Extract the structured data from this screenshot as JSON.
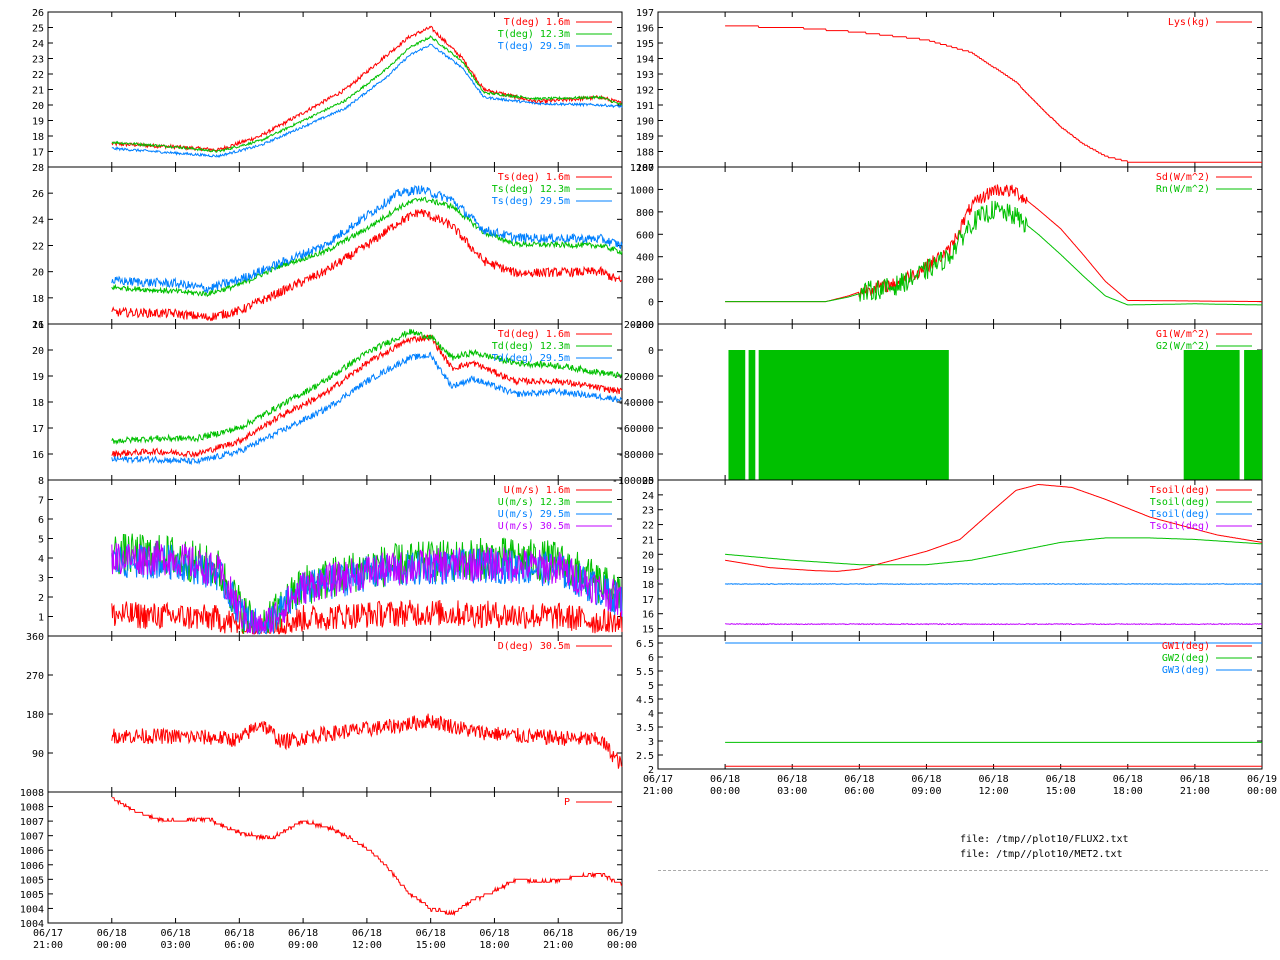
{
  "colors": {
    "red": "#ff0000",
    "green": "#00c000",
    "blue": "#0080ff",
    "purple": "#c000ff",
    "axis": "#000000",
    "background": "#ffffff"
  },
  "x_axis": {
    "range": [
      "06/17 21:00",
      "06/19 00:00"
    ],
    "ticks": [
      {
        "date": "06/17",
        "time": "21:00",
        "h": 0
      },
      {
        "date": "06/18",
        "time": "00:00",
        "h": 3
      },
      {
        "date": "06/18",
        "time": "03:00",
        "h": 6
      },
      {
        "date": "06/18",
        "time": "06:00",
        "h": 9
      },
      {
        "date": "06/18",
        "time": "09:00",
        "h": 12
      },
      {
        "date": "06/18",
        "time": "12:00",
        "h": 15
      },
      {
        "date": "06/18",
        "time": "15:00",
        "h": 18
      },
      {
        "date": "06/18",
        "time": "18:00",
        "h": 21
      },
      {
        "date": "06/18",
        "time": "21:00",
        "h": 24
      },
      {
        "date": "06/19",
        "time": "00:00",
        "h": 27
      }
    ]
  },
  "footer": {
    "file1": "file: /tmp//plot10/FLUX2.txt",
    "file2": "file: /tmp//plot10/MET2.txt"
  },
  "chart_data": [
    {
      "type": "line",
      "id": "temperature",
      "ylim": [
        16,
        26
      ],
      "yticks": [
        17,
        18,
        19,
        20,
        21,
        22,
        23,
        24,
        25,
        26
      ],
      "series": [
        {
          "name": "T(deg)  1.6m",
          "color": "#ff0000",
          "noise": 0.12,
          "x": [
            3.0,
            6.0,
            8.0,
            10.0,
            12.0,
            14.0,
            16.0,
            17.0,
            18.0,
            19.5,
            20.5,
            23.0,
            26.0,
            27.0
          ],
          "y": [
            17.5,
            17.3,
            17.1,
            18.0,
            19.5,
            21.0,
            23.3,
            24.4,
            25.0,
            23.0,
            21.0,
            20.2,
            20.5,
            20.1
          ]
        },
        {
          "name": "T(deg) 12.3m",
          "color": "#00c000",
          "noise": 0.08,
          "x": [
            3.0,
            6.0,
            8.0,
            10.0,
            12.0,
            14.0,
            16.0,
            17.0,
            18.0,
            19.5,
            20.5,
            23.0,
            26.0,
            27.0
          ],
          "y": [
            17.6,
            17.3,
            17.0,
            17.7,
            19.0,
            20.3,
            22.4,
            23.7,
            24.4,
            22.8,
            20.8,
            20.4,
            20.5,
            20.0
          ]
        },
        {
          "name": "T(deg) 29.5m",
          "color": "#0080ff",
          "noise": 0.08,
          "x": [
            3.0,
            6.0,
            8.0,
            10.0,
            12.0,
            14.0,
            16.0,
            17.0,
            18.0,
            19.5,
            20.5,
            23.0,
            26.0,
            27.0
          ],
          "y": [
            17.2,
            16.9,
            16.7,
            17.4,
            18.6,
            19.8,
            21.9,
            23.2,
            23.9,
            22.4,
            20.5,
            20.1,
            20.0,
            19.9
          ]
        }
      ]
    },
    {
      "type": "line",
      "id": "sonic-temperature",
      "ylim": [
        16,
        28
      ],
      "yticks": [
        16,
        18,
        20,
        22,
        24,
        26,
        28
      ],
      "series": [
        {
          "name": "Ts(deg)  1.6m",
          "color": "#ff0000",
          "noise": 0.35,
          "x": [
            3.0,
            6.0,
            7.5,
            9.0,
            11.0,
            13.0,
            15.0,
            16.5,
            17.5,
            19.0,
            20.5,
            22.0,
            26.0,
            27.0
          ],
          "y": [
            16.9,
            16.8,
            16.5,
            17.0,
            18.5,
            20.0,
            22.0,
            23.8,
            24.6,
            23.5,
            20.8,
            19.9,
            20.0,
            19.2
          ]
        },
        {
          "name": "Ts(deg) 12.3m",
          "color": "#00c000",
          "noise": 0.2,
          "x": [
            3.0,
            6.0,
            7.5,
            9.0,
            11.0,
            13.0,
            15.0,
            16.5,
            17.5,
            19.0,
            20.5,
            22.0,
            26.0,
            27.0
          ],
          "y": [
            18.8,
            18.5,
            18.3,
            19.0,
            20.5,
            21.5,
            23.3,
            24.9,
            25.6,
            25.0,
            23.0,
            22.1,
            22.0,
            21.5
          ]
        },
        {
          "name": "Ts(deg) 29.5m",
          "color": "#0080ff",
          "noise": 0.35,
          "x": [
            3.0,
            6.0,
            7.5,
            9.0,
            11.0,
            13.0,
            15.0,
            16.5,
            17.5,
            19.0,
            20.5,
            22.0,
            26.0,
            27.0
          ],
          "y": [
            19.3,
            19.1,
            18.7,
            19.4,
            20.7,
            22.0,
            24.3,
            26.0,
            26.3,
            25.5,
            23.2,
            22.6,
            22.5,
            22.0
          ]
        }
      ]
    },
    {
      "type": "line",
      "id": "dewpoint",
      "ylim": [
        15,
        21
      ],
      "yticks": [
        16,
        17,
        18,
        19,
        20,
        21
      ],
      "series": [
        {
          "name": "Td(deg)  1.6m",
          "color": "#ff0000",
          "noise": 0.12,
          "x": [
            3.0,
            5.0,
            7.0,
            9.0,
            11.0,
            13.0,
            15.0,
            17.0,
            18.0,
            19.0,
            20.0,
            22.0,
            24.0,
            27.0
          ],
          "y": [
            16.0,
            16.1,
            16.0,
            16.5,
            17.5,
            18.3,
            19.5,
            20.4,
            20.5,
            19.3,
            19.5,
            18.8,
            18.8,
            18.4
          ]
        },
        {
          "name": "Td(deg) 12.3m",
          "color": "#00c000",
          "noise": 0.12,
          "x": [
            3.0,
            5.0,
            7.0,
            9.0,
            11.0,
            13.0,
            15.0,
            17.0,
            18.0,
            19.0,
            20.0,
            22.0,
            24.0,
            27.0
          ],
          "y": [
            16.5,
            16.6,
            16.6,
            17.0,
            17.9,
            18.8,
            19.9,
            20.7,
            20.5,
            19.7,
            19.9,
            19.5,
            19.4,
            19.0
          ]
        },
        {
          "name": "Td(deg) 29.5m",
          "color": "#0080ff",
          "noise": 0.12,
          "x": [
            3.0,
            5.0,
            7.0,
            9.0,
            11.0,
            13.0,
            15.0,
            17.0,
            18.0,
            19.0,
            20.0,
            22.0,
            24.0,
            27.0
          ],
          "y": [
            15.8,
            15.8,
            15.7,
            16.1,
            16.9,
            17.7,
            18.8,
            19.7,
            19.8,
            18.6,
            18.9,
            18.3,
            18.4,
            18.1
          ]
        }
      ]
    },
    {
      "type": "line",
      "id": "wind-speed",
      "ylim": [
        0,
        8
      ],
      "yticks": [
        1,
        2,
        3,
        4,
        5,
        6,
        7,
        8
      ],
      "series": [
        {
          "name": "U(m/s)  1.6m",
          "color": "#ff0000",
          "noise": 0.7,
          "floor": 0.1,
          "x": [
            3.0,
            6.0,
            8.0,
            9.2,
            10.0,
            12.0,
            15.0,
            18.0,
            21.0,
            24.0,
            27.0
          ],
          "y": [
            1.1,
            1.0,
            0.9,
            0.5,
            0.3,
            0.9,
            1.1,
            1.2,
            1.1,
            1.0,
            0.6
          ]
        },
        {
          "name": "U(m/s) 12.3m",
          "color": "#00c000",
          "noise": 1.1,
          "floor": 0.1,
          "x": [
            3.0,
            6.0,
            8.0,
            9.2,
            10.0,
            12.0,
            15.0,
            18.0,
            21.0,
            24.0,
            27.0
          ],
          "y": [
            4.2,
            4.1,
            3.4,
            1.2,
            0.3,
            2.6,
            3.5,
            3.8,
            4.0,
            3.8,
            2.0
          ]
        },
        {
          "name": "U(m/s) 29.5m",
          "color": "#0080ff",
          "noise": 0.9,
          "floor": 0.1,
          "x": [
            3.0,
            6.0,
            8.0,
            9.2,
            10.0,
            12.0,
            15.0,
            18.0,
            21.0,
            24.0,
            27.0
          ],
          "y": [
            3.8,
            3.8,
            3.2,
            1.0,
            0.3,
            2.4,
            3.2,
            3.5,
            3.6,
            3.4,
            1.8
          ]
        },
        {
          "name": "U(m/s) 30.5m",
          "color": "#c000ff",
          "noise": 0.9,
          "floor": 0.1,
          "x": [
            3.0,
            6.0,
            8.0,
            9.2,
            10.0,
            12.0,
            15.0,
            18.0,
            21.0,
            24.0,
            27.0
          ],
          "y": [
            4.0,
            4.0,
            3.3,
            1.0,
            0.3,
            2.5,
            3.3,
            3.6,
            3.7,
            3.5,
            1.8
          ]
        }
      ]
    },
    {
      "type": "line",
      "id": "wind-direction",
      "ylim": [
        0,
        360
      ],
      "yticks": [
        90,
        180,
        270,
        360
      ],
      "series": [
        {
          "name": "D(deg)  30.5m",
          "color": "#ff0000",
          "noise": 18,
          "x": [
            3.0,
            6.0,
            8.0,
            9.0,
            10.0,
            11.0,
            12.5,
            14.0,
            16.0,
            18.0,
            20.0,
            22.0,
            24.0,
            26.0,
            27.0
          ],
          "y": [
            130,
            128,
            125,
            120,
            160,
            115,
            130,
            140,
            150,
            165,
            140,
            130,
            125,
            120,
            60
          ]
        }
      ]
    },
    {
      "type": "line",
      "id": "pressure",
      "ylim": [
        1003.5,
        1008
      ],
      "yticks": [
        1003.5,
        1004,
        1004.5,
        1005,
        1005.5,
        1006,
        1006.5,
        1007,
        1007.5,
        1008
      ],
      "series": [
        {
          "name": "P",
          "color": "#ff0000",
          "noise": 0.05,
          "step": 0.1,
          "x": [
            3.0,
            4.0,
            5.0,
            6.0,
            7.5,
            9.0,
            10.5,
            12.0,
            13.5,
            14.5,
            15.5,
            17.0,
            18.0,
            19.0,
            20.0,
            21.0,
            22.0,
            23.5,
            25.0,
            26.0,
            27.0
          ],
          "y": [
            1007.8,
            1007.4,
            1007.1,
            1007.0,
            1007.1,
            1006.6,
            1006.4,
            1007.0,
            1006.7,
            1006.3,
            1005.8,
            1004.5,
            1004.0,
            1003.8,
            1004.3,
            1004.6,
            1005.0,
            1004.9,
            1005.1,
            1005.2,
            1004.8
          ]
        }
      ]
    },
    {
      "type": "line",
      "id": "lysimeter",
      "ylim": [
        187,
        197
      ],
      "yticks": [
        187,
        188,
        189,
        190,
        191,
        192,
        193,
        194,
        195,
        196,
        197
      ],
      "series": [
        {
          "name": "Lys(kg)",
          "color": "#ff0000",
          "noise": 0,
          "step": 0.1,
          "x": [
            3.0,
            6.0,
            9.0,
            12.0,
            14.0,
            16.0,
            17.0,
            18.0,
            19.0,
            20.0,
            21.0,
            22.0,
            27.0
          ],
          "y": [
            196.1,
            196.0,
            195.7,
            195.2,
            194.4,
            192.5,
            191.0,
            189.6,
            188.5,
            187.7,
            187.35,
            187.3,
            187.3
          ]
        }
      ]
    },
    {
      "type": "line",
      "id": "radiation",
      "ylim": [
        -200,
        1200
      ],
      "yticks": [
        -200,
        0,
        200,
        400,
        600,
        800,
        1000,
        1200
      ],
      "series": [
        {
          "name": "Sd(W/m^2)",
          "color": "#ff0000",
          "noise": 60,
          "noiseFrom": 9,
          "noiseTo": 16.5,
          "x": [
            3.0,
            7.5,
            8.5,
            9.5,
            10.5,
            11.5,
            13.0,
            14.0,
            15.0,
            16.0,
            17.0,
            18.0,
            19.0,
            20.0,
            21.0,
            27.0
          ],
          "y": [
            0,
            0,
            50,
            120,
            150,
            250,
            450,
            850,
            1000,
            980,
            820,
            650,
            420,
            180,
            10,
            0
          ]
        },
        {
          "name": "Rn(W/m^2)",
          "color": "#00c000",
          "noise": 90,
          "noiseFrom": 9,
          "noiseTo": 16.5,
          "x": [
            3.0,
            7.5,
            8.5,
            9.5,
            10.5,
            11.5,
            13.0,
            14.0,
            15.0,
            16.0,
            17.0,
            18.0,
            19.0,
            20.0,
            21.0,
            24.0,
            27.0
          ],
          "y": [
            0,
            0,
            40,
            100,
            130,
            220,
            400,
            700,
            820,
            760,
            600,
            420,
            230,
            50,
            -30,
            -20,
            -30
          ]
        }
      ]
    },
    {
      "type": "bar",
      "id": "ground-heat-flux",
      "ylim": [
        -100000,
        20000
      ],
      "yticks": [
        -100000,
        -80000,
        -60000,
        -40000,
        -20000,
        0,
        20000
      ],
      "fill_range": [
        3.15,
        27.0
      ],
      "fill_value": -100000,
      "gaps": [
        3.9,
        4.05,
        4.35,
        4.5,
        13.0,
        23.5,
        26.0,
        26.2
      ],
      "series": [
        {
          "name": "G1(W/m^2)",
          "color": "#ff0000"
        },
        {
          "name": "G2(W/m^2)",
          "color": "#00c000"
        }
      ]
    },
    {
      "type": "line",
      "id": "soil-temperature",
      "ylim": [
        14.5,
        25
      ],
      "yticks": [
        15,
        16,
        17,
        18,
        19,
        20,
        21,
        22,
        23,
        24,
        25
      ],
      "series": [
        {
          "name": "Tsoil(deg)",
          "color": "#ff0000",
          "noise": 0,
          "x": [
            3.0,
            5.0,
            7.0,
            8.0,
            9.0,
            10.5,
            12.0,
            13.5,
            15.0,
            16.0,
            17.0,
            18.5,
            20.0,
            22.0,
            25.0,
            27.0
          ],
          "y": [
            19.6,
            19.1,
            18.9,
            18.85,
            19.0,
            19.6,
            20.2,
            21.0,
            23.0,
            24.3,
            24.7,
            24.5,
            23.7,
            22.5,
            21.3,
            20.8
          ]
        },
        {
          "name": "Tsoil(deg)",
          "color": "#00c000",
          "noise": 0,
          "x": [
            3.0,
            6.0,
            9.0,
            12.0,
            14.0,
            16.0,
            18.0,
            20.0,
            22.0,
            24.0,
            27.0
          ],
          "y": [
            20.0,
            19.6,
            19.3,
            19.3,
            19.6,
            20.2,
            20.8,
            21.1,
            21.1,
            21.0,
            20.7
          ]
        },
        {
          "name": "Tsoil(deg)",
          "color": "#0080ff",
          "noise": 0.02,
          "x": [
            3.0,
            27.0
          ],
          "y": [
            18.0,
            18.0
          ]
        },
        {
          "name": "Tsoil(deg)",
          "color": "#c000ff",
          "noise": 0.03,
          "x": [
            3.0,
            27.0
          ],
          "y": [
            15.3,
            15.3
          ]
        }
      ]
    },
    {
      "type": "line",
      "id": "groundwater",
      "ylim": [
        2,
        6.75
      ],
      "yticks": [
        2,
        2.5,
        3,
        3.5,
        4,
        4.5,
        5,
        5.5,
        6,
        6.5
      ],
      "series": [
        {
          "name": "GW1(deg)",
          "color": "#ff0000",
          "noise": 0,
          "x": [
            3.0,
            27.0
          ],
          "y": [
            2.1,
            2.1
          ]
        },
        {
          "name": "GW2(deg)",
          "color": "#00c000",
          "noise": 0,
          "x": [
            3.0,
            27.0
          ],
          "y": [
            2.95,
            2.95
          ]
        },
        {
          "name": "GW3(deg)",
          "color": "#0080ff",
          "noise": 0,
          "x": [
            3.0,
            27.0
          ],
          "y": [
            6.5,
            6.5
          ]
        }
      ]
    }
  ]
}
